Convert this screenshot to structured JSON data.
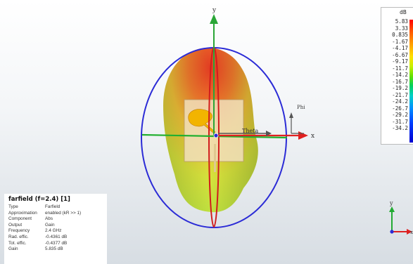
{
  "axes": {
    "y_label": "y",
    "x_label": "x",
    "phi_label": "Phi",
    "theta_label": "Theta"
  },
  "info": {
    "title": "farfield (f=2.4) [1]",
    "rows": [
      {
        "key": "Type",
        "value": "Farfield"
      },
      {
        "key": "Approximation",
        "value": "enabled (kR >> 1)"
      },
      {
        "key": "Component",
        "value": "Abs"
      },
      {
        "key": "Output",
        "value": "Gain"
      },
      {
        "key": "Frequency",
        "value": "2.4 GHz"
      },
      {
        "key": "Rad. effic.",
        "value": "-0.4361 dB"
      },
      {
        "key": "Tot. effic.",
        "value": "-0.4377 dB"
      },
      {
        "key": "Gain",
        "value": "5.835 dB"
      }
    ]
  },
  "colorbar": {
    "unit": "dB",
    "labels": [
      "5.83",
      "3.33",
      "0.835",
      "-1.67",
      "-4.17",
      "-6.67",
      "-9.17",
      "-11.7",
      "-14.2",
      "-16.7",
      "-19.2",
      "-21.7",
      "-24.2",
      "-26.7",
      "-29.2",
      "-31.7",
      "-34.2"
    ]
  },
  "triad": {
    "y_label": "y",
    "x_label": "x"
  },
  "colors": {
    "ellipse": "#2b2bd6",
    "y_axis": "#22aa33",
    "x_axis": "#dd2222",
    "pattern_top": "#e0402a",
    "pattern_bottom": "#d8e030"
  }
}
